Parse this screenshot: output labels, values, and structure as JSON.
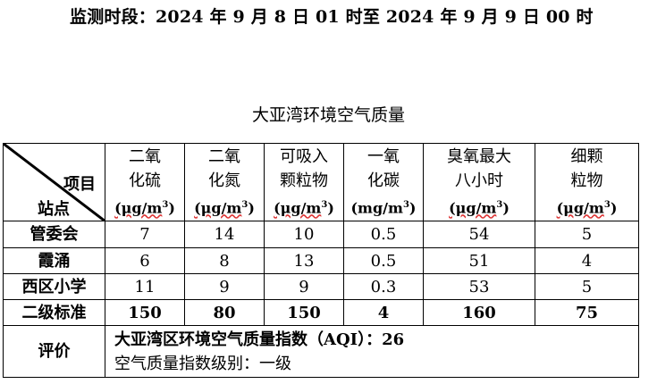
{
  "monitoring_period": "监测时段：2024 年 9 月 8 日 01 时至 2024 年 9 月 9 日 00 时",
  "table_title": "大亚湾环境空气质量",
  "header": {
    "corner_item": "项目",
    "corner_station": "站点",
    "columns": [
      {
        "line1": "二氧",
        "line2": "化硫",
        "unit": "(μg/m",
        "sup": "3",
        "close": ")"
      },
      {
        "line1": "二氧",
        "line2": "化氮",
        "unit": "(μg/m",
        "sup": "3",
        "close": ")"
      },
      {
        "line1": "可吸入",
        "line2": "颗粒物",
        "unit": "(μg/m",
        "sup": "3",
        "close": ")"
      },
      {
        "line1": "一氧",
        "line2": "化碳",
        "unit": "(mg/m",
        "sup": "3",
        "close": ")"
      },
      {
        "line1": "臭氧最大",
        "line2": "八小时",
        "unit": "(μg/m",
        "sup": "3",
        "close": ")"
      },
      {
        "line1": "细颗",
        "line2": "粒物",
        "unit": "(μg/m",
        "sup": "3",
        "close": ")"
      }
    ]
  },
  "rows": [
    {
      "station": "管委会",
      "values": [
        "7",
        "14",
        "10",
        "0.5",
        "54",
        "5"
      ]
    },
    {
      "station": "霞涌",
      "values": [
        "6",
        "8",
        "13",
        "0.5",
        "51",
        "4"
      ]
    },
    {
      "station": "西区小学",
      "values": [
        "11",
        "9",
        "9",
        "0.3",
        "53",
        "5"
      ]
    }
  ],
  "standard": {
    "label": "二级标准",
    "values": [
      "150",
      "80",
      "150",
      "4",
      "160",
      "75"
    ]
  },
  "evaluation": {
    "label": "评价",
    "line1": "大亚湾区环境空气质量指数（AQI）：26",
    "line2": "空气质量指数级别：一级"
  }
}
